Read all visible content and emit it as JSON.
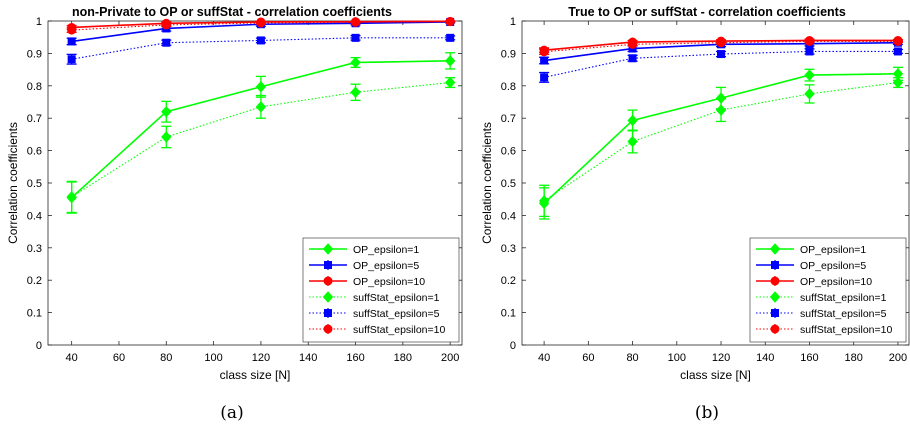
{
  "chart_data": [
    {
      "type": "line",
      "title": "non-Private to OP or suffStat - correlation coefficients",
      "xlabel": "class size [N]",
      "ylabel": "Correlation coefficients",
      "caption": "(a)",
      "xlim": [
        30,
        205
      ],
      "ylim": [
        0,
        1
      ],
      "xticks": [
        40,
        60,
        80,
        100,
        120,
        140,
        160,
        180,
        200
      ],
      "yticks": [
        0,
        0.1,
        0.2,
        0.3,
        0.4,
        0.5,
        0.6,
        0.7,
        0.8,
        0.9,
        1
      ],
      "grid": false,
      "legend_position": "bottom-right",
      "x": [
        40,
        80,
        120,
        160,
        200
      ],
      "series": [
        {
          "name": "OP_epsilon=1",
          "color": "#00ff00",
          "style": "solid",
          "marker": "diamond",
          "values": [
            0.455,
            0.72,
            0.797,
            0.872,
            0.877
          ],
          "errors": [
            0.048,
            0.032,
            0.032,
            0.015,
            0.025
          ]
        },
        {
          "name": "OP_epsilon=5",
          "color": "#0000ff",
          "style": "solid",
          "marker": "square",
          "values": [
            0.937,
            0.977,
            0.99,
            0.993,
            0.997
          ],
          "errors": [
            0.01,
            0.008,
            0.006,
            0.005,
            0.003
          ]
        },
        {
          "name": "OP_epsilon=10",
          "color": "#ff0000",
          "style": "solid",
          "marker": "circle",
          "values": [
            0.98,
            0.993,
            0.997,
            0.998,
            0.999
          ],
          "errors": [
            0.006,
            0.004,
            0.002,
            0.002,
            0.001
          ]
        },
        {
          "name": "suffStat_epsilon=1",
          "color": "#00ff00",
          "style": "dotted",
          "marker": "diamond",
          "values": [
            0.457,
            0.642,
            0.735,
            0.78,
            0.81
          ],
          "errors": [
            0.048,
            0.033,
            0.035,
            0.025,
            0.015
          ]
        },
        {
          "name": "suffStat_epsilon=5",
          "color": "#0000ff",
          "style": "dotted",
          "marker": "square",
          "values": [
            0.882,
            0.933,
            0.94,
            0.948,
            0.948
          ],
          "errors": [
            0.015,
            0.008,
            0.007,
            0.007,
            0.006
          ]
        },
        {
          "name": "suffStat_epsilon=10",
          "color": "#ff0000",
          "style": "dotted",
          "marker": "circle",
          "values": [
            0.972,
            0.988,
            0.994,
            0.996,
            0.998
          ],
          "errors": [
            0.007,
            0.005,
            0.003,
            0.002,
            0.001
          ]
        }
      ]
    },
    {
      "type": "line",
      "title": "True to OP or suffStat - correlation coefficients",
      "xlabel": "class size [N]",
      "ylabel": "Correlation coefficients",
      "caption": "(b)",
      "xlim": [
        30,
        205
      ],
      "ylim": [
        0,
        1
      ],
      "xticks": [
        40,
        60,
        80,
        100,
        120,
        140,
        160,
        180,
        200
      ],
      "yticks": [
        0,
        0.1,
        0.2,
        0.3,
        0.4,
        0.5,
        0.6,
        0.7,
        0.8,
        0.9,
        1
      ],
      "grid": false,
      "legend_position": "bottom-right",
      "x": [
        40,
        80,
        120,
        160,
        200
      ],
      "series": [
        {
          "name": "OP_epsilon=1",
          "color": "#00ff00",
          "style": "solid",
          "marker": "diamond",
          "values": [
            0.437,
            0.693,
            0.762,
            0.833,
            0.837
          ],
          "errors": [
            0.048,
            0.032,
            0.033,
            0.018,
            0.02
          ]
        },
        {
          "name": "OP_epsilon=5",
          "color": "#0000ff",
          "style": "solid",
          "marker": "square",
          "values": [
            0.878,
            0.915,
            0.928,
            0.93,
            0.933
          ],
          "errors": [
            0.01,
            0.009,
            0.007,
            0.007,
            0.005
          ]
        },
        {
          "name": "OP_epsilon=10",
          "color": "#ff0000",
          "style": "solid",
          "marker": "circle",
          "values": [
            0.91,
            0.935,
            0.938,
            0.94,
            0.94
          ],
          "errors": [
            0.007,
            0.005,
            0.004,
            0.004,
            0.003
          ]
        },
        {
          "name": "suffStat_epsilon=1",
          "color": "#00ff00",
          "style": "dotted",
          "marker": "diamond",
          "values": [
            0.445,
            0.628,
            0.725,
            0.775,
            0.81
          ],
          "errors": [
            0.048,
            0.035,
            0.035,
            0.028,
            0.015
          ]
        },
        {
          "name": "suffStat_epsilon=5",
          "color": "#0000ff",
          "style": "dotted",
          "marker": "square",
          "values": [
            0.826,
            0.885,
            0.898,
            0.906,
            0.906
          ],
          "errors": [
            0.015,
            0.009,
            0.008,
            0.008,
            0.006
          ]
        },
        {
          "name": "suffStat_epsilon=10",
          "color": "#ff0000",
          "style": "dotted",
          "marker": "circle",
          "values": [
            0.905,
            0.928,
            0.933,
            0.937,
            0.937
          ],
          "errors": [
            0.008,
            0.005,
            0.004,
            0.004,
            0.003
          ]
        }
      ]
    }
  ]
}
